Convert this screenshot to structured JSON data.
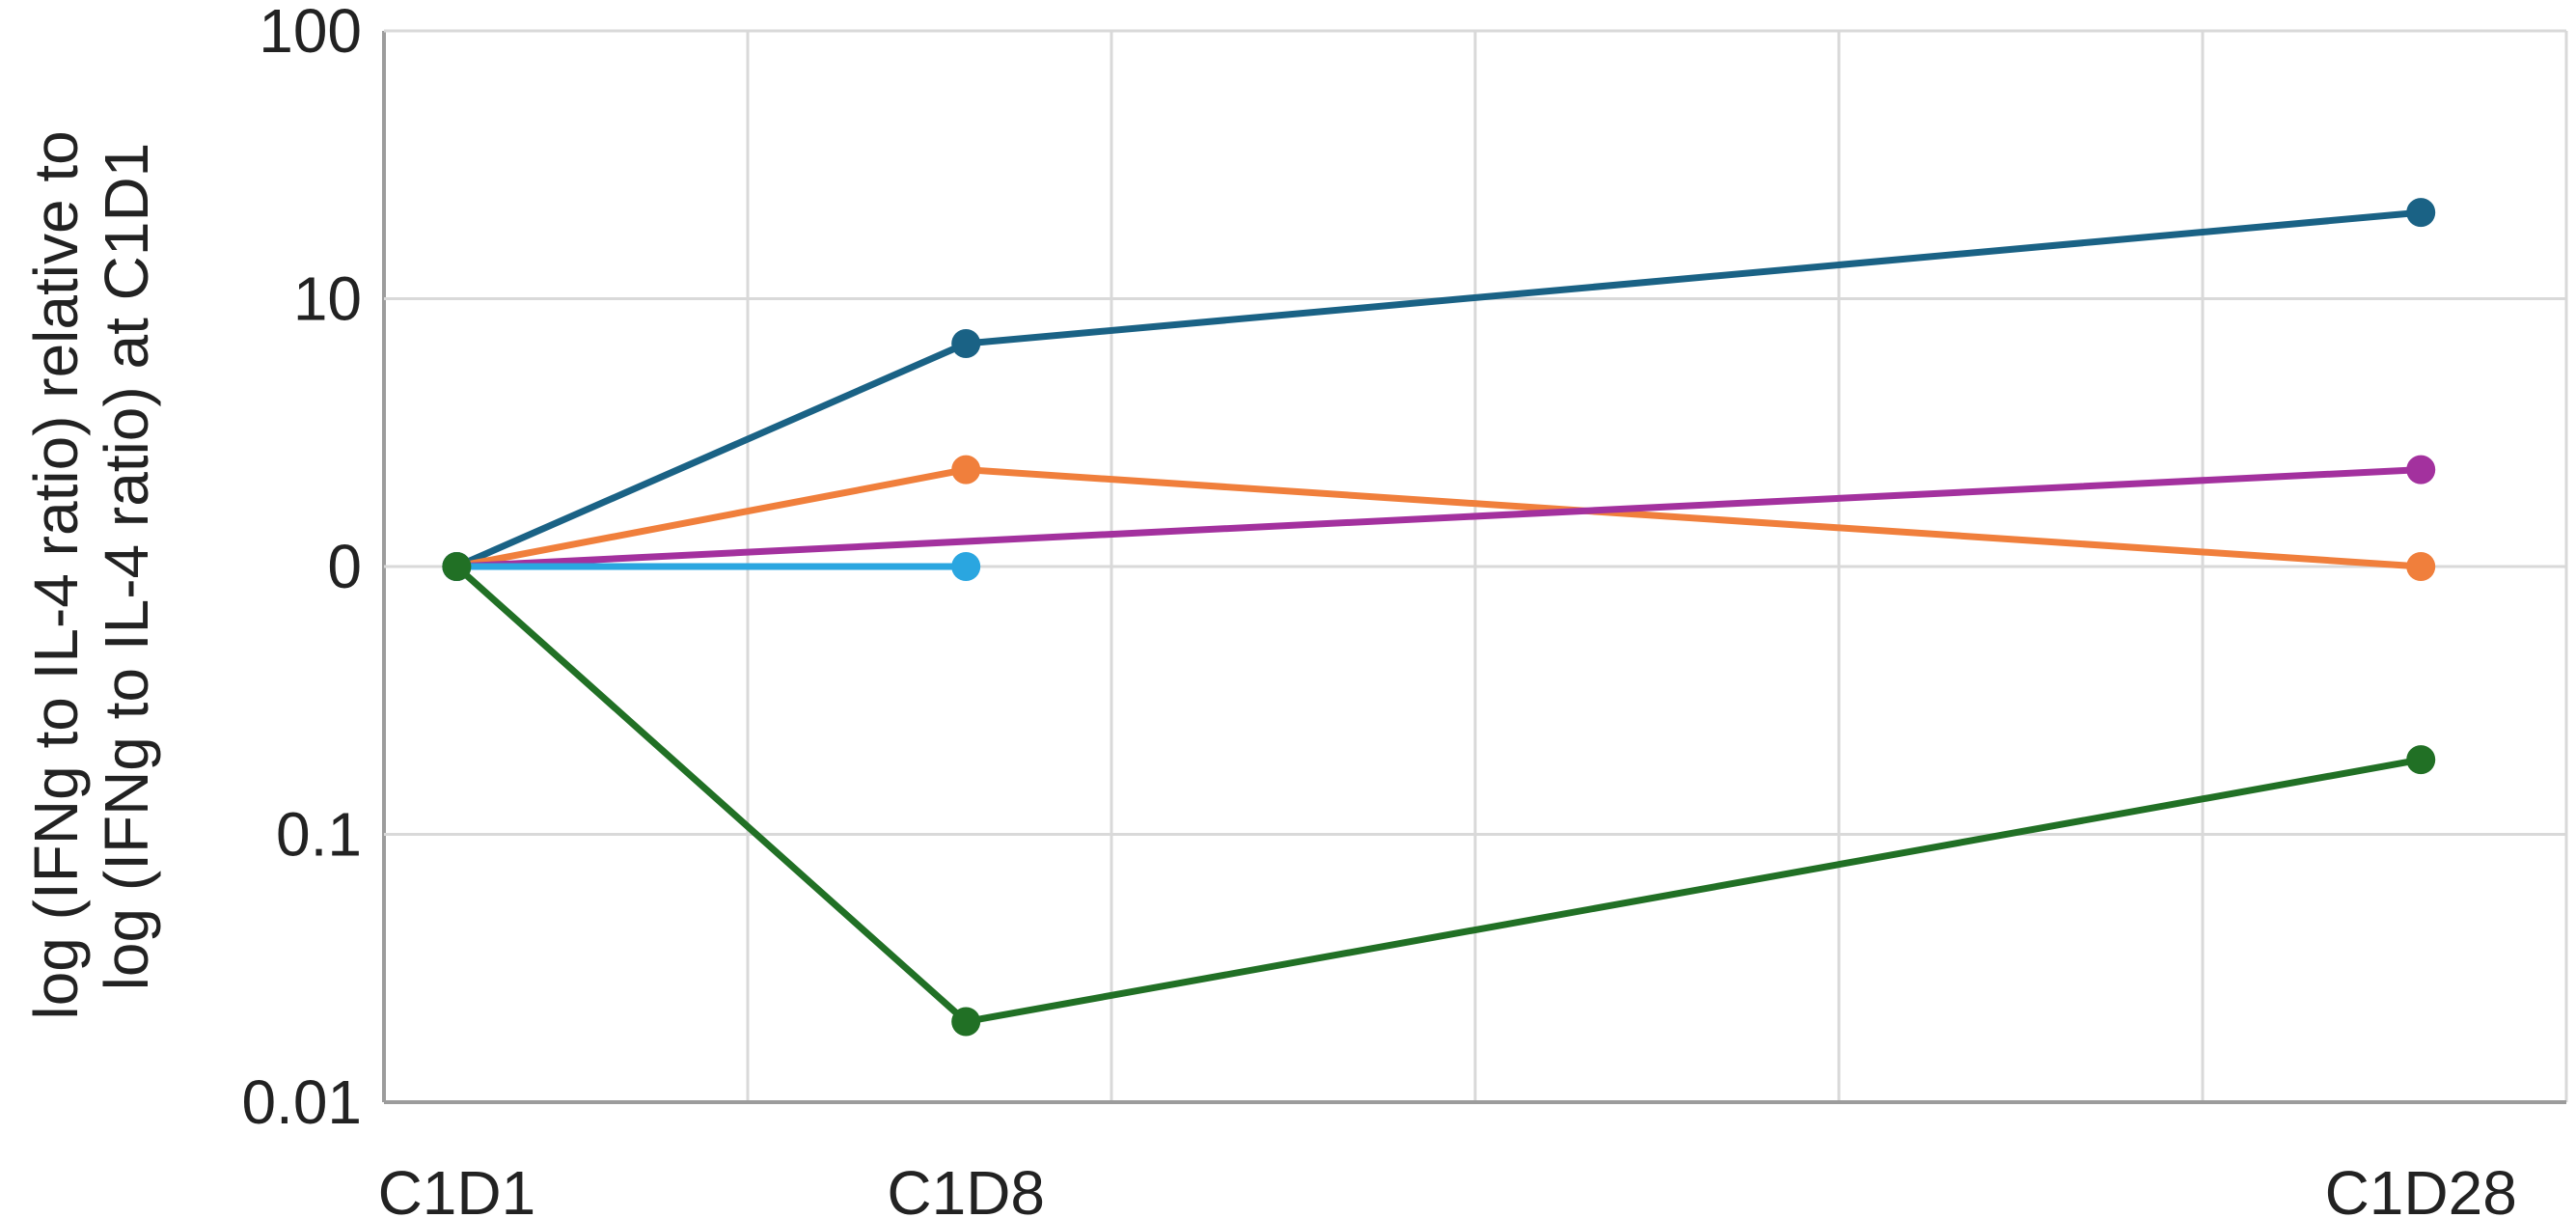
{
  "chart_data": {
    "type": "line",
    "title": "",
    "xlabel": "",
    "ylabel_lines": [
      "log (IFNg to IL-4 ratio) relative to",
      "log (IFNg to IL-4 ratio) at C1D1"
    ],
    "y_scale": "log",
    "ylim": [
      0.01,
      100
    ],
    "y_ticks": [
      {
        "value": 100,
        "label": "100"
      },
      {
        "value": 10,
        "label": "10"
      },
      {
        "value": 1,
        "label": "0"
      },
      {
        "value": 0.1,
        "label": "0.1"
      },
      {
        "value": 0.01,
        "label": "0.01"
      }
    ],
    "x_range_days": [
      0,
      30
    ],
    "x_gridlines_days": [
      0,
      5,
      10,
      15,
      20,
      25,
      30
    ],
    "x_ticks": [
      {
        "day": 1,
        "label": "C1D1"
      },
      {
        "day": 8,
        "label": "C1D8"
      },
      {
        "day": 28,
        "label": "C1D28"
      }
    ],
    "grid": true,
    "legend": "none",
    "series": [
      {
        "color": "#1a6285",
        "points": [
          {
            "day": 1,
            "y": 1
          },
          {
            "day": 8,
            "y": 6.8
          },
          {
            "day": 28,
            "y": 21
          }
        ]
      },
      {
        "color": "#f07f3c",
        "points": [
          {
            "day": 1,
            "y": 1
          },
          {
            "day": 8,
            "y": 2.3
          },
          {
            "day": 28,
            "y": 1
          }
        ]
      },
      {
        "color": "#a3319e",
        "points": [
          {
            "day": 1,
            "y": 1
          },
          {
            "day": 28,
            "y": 2.3
          }
        ]
      },
      {
        "color": "#2aa6e0",
        "points": [
          {
            "day": 1,
            "y": 1
          },
          {
            "day": 8,
            "y": 1
          }
        ]
      },
      {
        "color": "#217025",
        "points": [
          {
            "day": 1,
            "y": 1
          },
          {
            "day": 8,
            "y": 0.02
          },
          {
            "day": 28,
            "y": 0.19
          }
        ]
      }
    ]
  }
}
